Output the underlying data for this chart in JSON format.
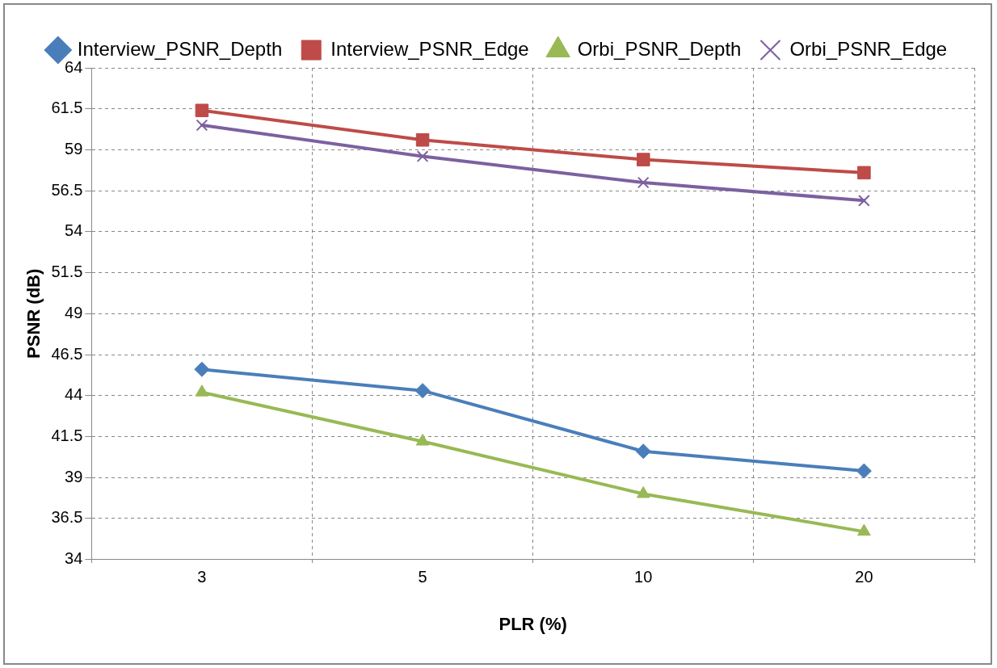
{
  "chart_data": {
    "type": "line",
    "xlabel": "PLR (%)",
    "ylabel": "PSNR (dB)",
    "categories": [
      "3",
      "5",
      "10",
      "20"
    ],
    "series": [
      {
        "name": "Interview_PSNR_Depth",
        "color": "#4a7ebb",
        "marker": "diamond",
        "values": [
          45.6,
          44.3,
          40.6,
          39.4
        ]
      },
      {
        "name": "Interview_PSNR_Edge",
        "color": "#be4b48",
        "marker": "square",
        "values": [
          61.4,
          59.6,
          58.4,
          57.6
        ]
      },
      {
        "name": "Orbi_PSNR_Depth",
        "color": "#98b954",
        "marker": "triangle",
        "values": [
          44.2,
          41.2,
          38.0,
          35.7
        ]
      },
      {
        "name": "Orbi_PSNR_Edge",
        "color": "#7d60a0",
        "marker": "cross",
        "values": [
          60.5,
          58.6,
          57.0,
          55.9
        ]
      }
    ],
    "ylim": [
      34,
      64
    ],
    "yticks": [
      34,
      36.5,
      39,
      41.5,
      44,
      46.5,
      49,
      51.5,
      54,
      56.5,
      59,
      61.5,
      64
    ],
    "grid": true,
    "legend": "top",
    "line_style": "solid"
  }
}
